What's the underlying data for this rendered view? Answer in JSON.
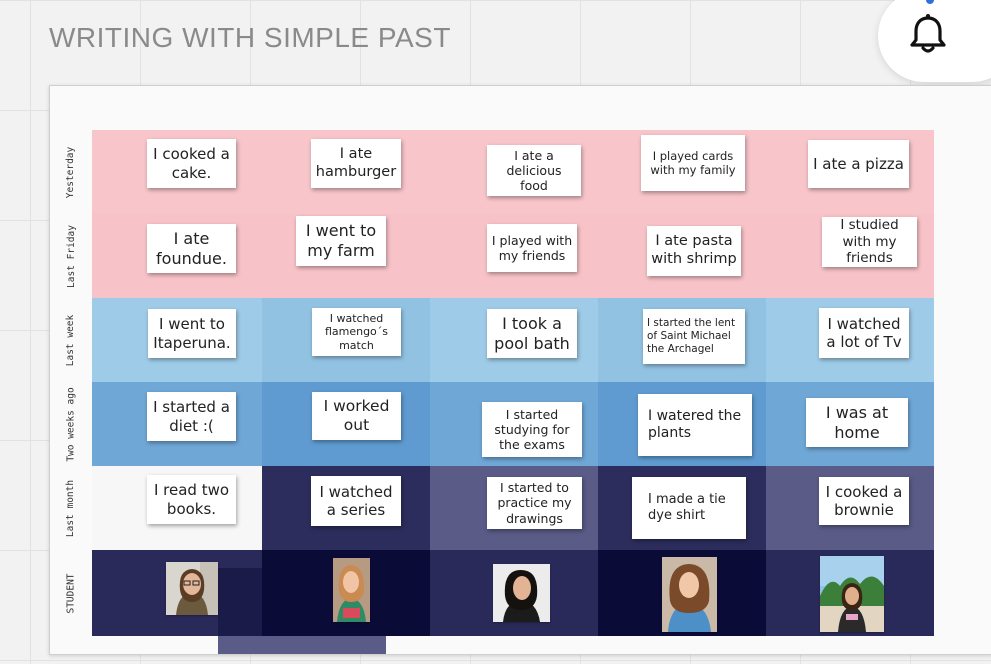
{
  "page": {
    "title": "WRITING WITH SIMPLE PAST"
  },
  "bell": {
    "icon": "bell-icon"
  },
  "rows": [
    {
      "label": "Yesterday"
    },
    {
      "label": "Last Friday"
    },
    {
      "label": "Last week"
    },
    {
      "label": "Two weeks ago"
    },
    {
      "label": "Last month"
    },
    {
      "label": "STUDENT"
    }
  ],
  "notes": {
    "r0c0": "I cooked a cake.",
    "r0c1": "I ate hamburger",
    "r0c2": "I ate a delicious food",
    "r0c3": "I played cards with my family",
    "r0c4": "I ate a pizza",
    "r1c0": "I ate foundue.",
    "r1c1": "I went to my farm",
    "r1c2": "I played with my friends",
    "r1c3": "I ate pasta with shrimp",
    "r1c4": "I studied with my friends",
    "r2c0": "I went to Itaperuna.",
    "r2c1": "I watched flamengo´s match",
    "r2c2": "I took a pool bath",
    "r2c3": "I started the lent of Saint Michael the Archagel",
    "r2c4": "I watched a lot of Tv",
    "r3c0": "I started a diet :(",
    "r3c1": "I worked out",
    "r3c2": "I started studying for the exams",
    "r3c3": "I watered the plants",
    "r3c4": "I was at home",
    "r4c0": "I read two books.",
    "r4c1": "I watched a series",
    "r4c2": "I started to practice my drawings",
    "r4c3": "I made a tie dye shirt",
    "r4c4": "I cooked a brownie"
  },
  "colors": {
    "pink": "#f7c4c9",
    "light_blue": "#9fcbe6",
    "mid_blue": "#6ba3d3",
    "dark_navy": "#2e2f5e",
    "deep_navy": "#0c0c3a"
  }
}
